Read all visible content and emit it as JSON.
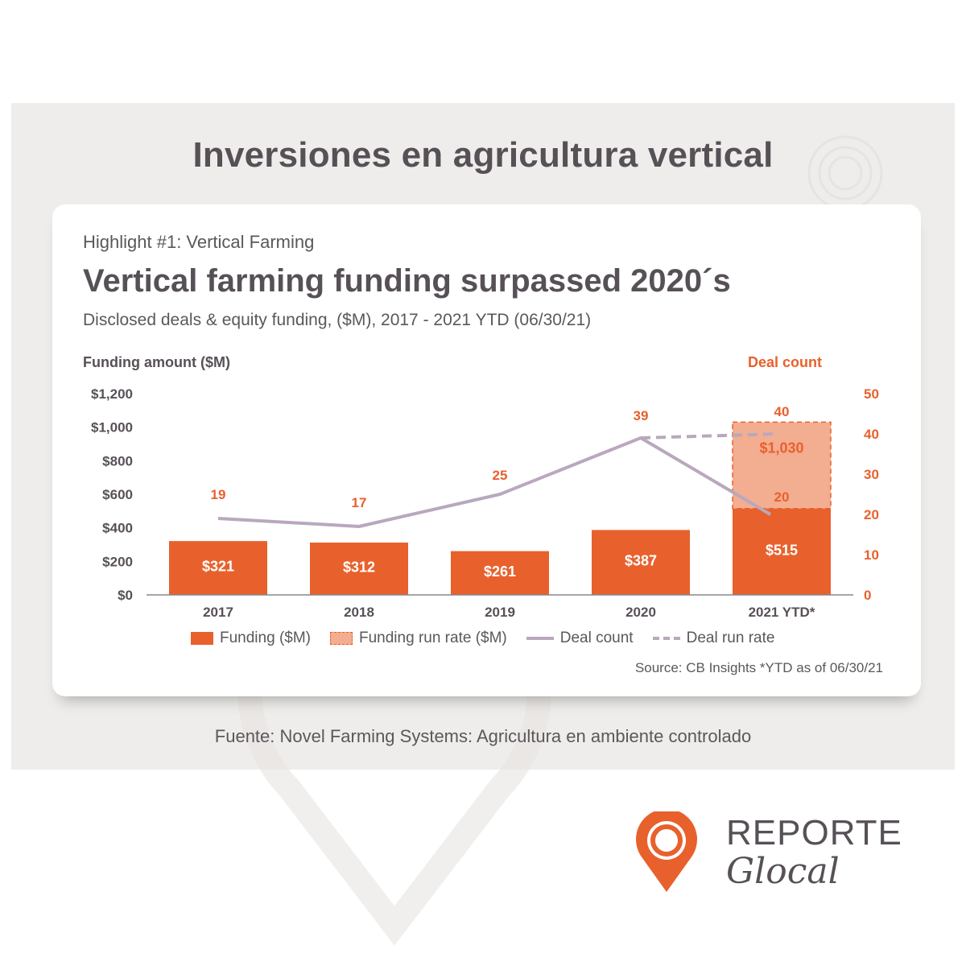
{
  "page": {
    "title": "Inversiones en agricultura vertical",
    "footer_source": "Fuente: Novel Farming Systems: Agricultura en ambiente controlado"
  },
  "card": {
    "highlight": "Highlight #1: Vertical Farming",
    "title": "Vertical farming funding surpassed 2020´s",
    "subtitle": "Disclosed deals & equity funding, ($M), 2017 - 2021 YTD (06/30/21)",
    "source": "Source: CB Insights *YTD as of 06/30/21"
  },
  "logo": {
    "word1": "REPORTE",
    "word2": "Glocal",
    "icon": "location-pin-icon"
  },
  "colors": {
    "funding": "#e8612c",
    "run_rate": "#f3ad90",
    "deal_line": "#b9a8bd",
    "text_dark": "#575157",
    "accent_orange": "#e8612c"
  },
  "chart_data": {
    "type": "bar",
    "categories": [
      "2017",
      "2018",
      "2019",
      "2020",
      "2021 YTD*"
    ],
    "ylabel": "Funding amount ($M)",
    "y2label": "Deal count",
    "ylim": [
      0,
      1200
    ],
    "y2lim": [
      0,
      50
    ],
    "yticks": [
      "$0",
      "$200",
      "$400",
      "$600",
      "$800",
      "$1,000",
      "$1,200"
    ],
    "y2ticks": [
      "0",
      "10",
      "20",
      "30",
      "40",
      "50"
    ],
    "funding": {
      "name": "Funding ($M)",
      "values": [
        321,
        312,
        261,
        387,
        515
      ],
      "labels": [
        "$321",
        "$312",
        "$261",
        "$387",
        "$515"
      ]
    },
    "run_rate": {
      "name": "Funding run rate ($M)",
      "category": "2021 YTD*",
      "value": 1030,
      "label": "$1,030"
    },
    "deal_count": {
      "name": "Deal count",
      "values": [
        19,
        17,
        25,
        39,
        20
      ],
      "labels": [
        "19",
        "17",
        "25",
        "39",
        "20"
      ]
    },
    "deal_run_rate": {
      "name": "Deal run rate",
      "from_category": "2020",
      "from_value": 39,
      "to_category": "2021 YTD*",
      "to_value": 40,
      "label": "40"
    },
    "grid": false,
    "legend_position": "bottom"
  }
}
